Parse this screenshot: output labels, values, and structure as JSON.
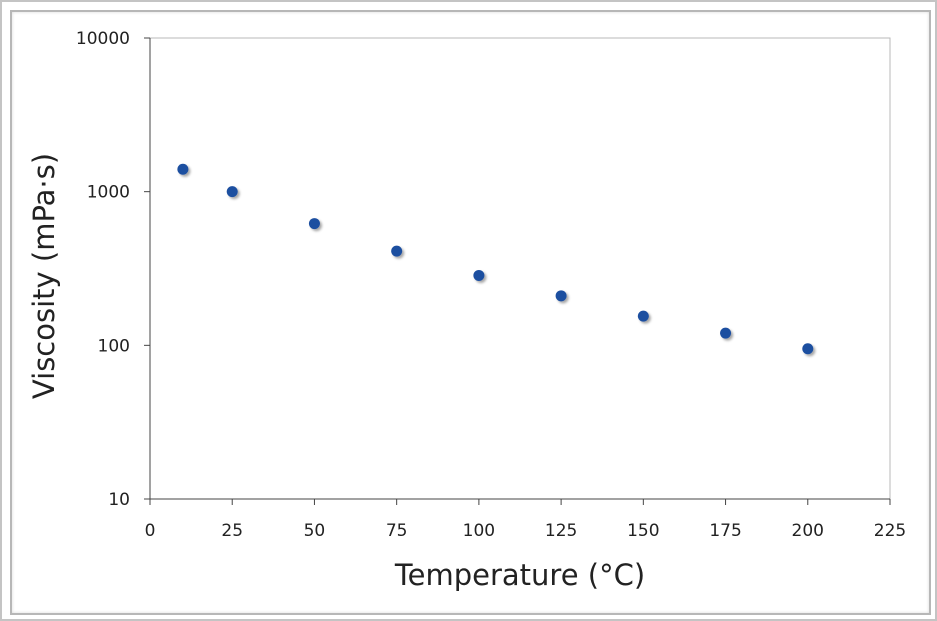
{
  "chart_data": {
    "type": "scatter",
    "xlabel": "Temperature (°C)",
    "ylabel": "Viscosity (mPa·s)",
    "xlim": [
      0,
      225
    ],
    "ylim": [
      10,
      10000
    ],
    "y_scale": "log",
    "x_ticks": [
      "0",
      "25",
      "50",
      "75",
      "100",
      "125",
      "150",
      "175",
      "200",
      "225"
    ],
    "y_ticks": [
      "10",
      "100",
      "1000",
      "10000"
    ],
    "grid": false,
    "legend": "none",
    "marker_color": "#1f4fa0",
    "series": [
      {
        "x": [
          10,
          25,
          50,
          75,
          100,
          125,
          150,
          175,
          200
        ],
        "y": [
          1400,
          1000,
          620,
          410,
          285,
          210,
          155,
          120,
          95
        ]
      }
    ]
  }
}
